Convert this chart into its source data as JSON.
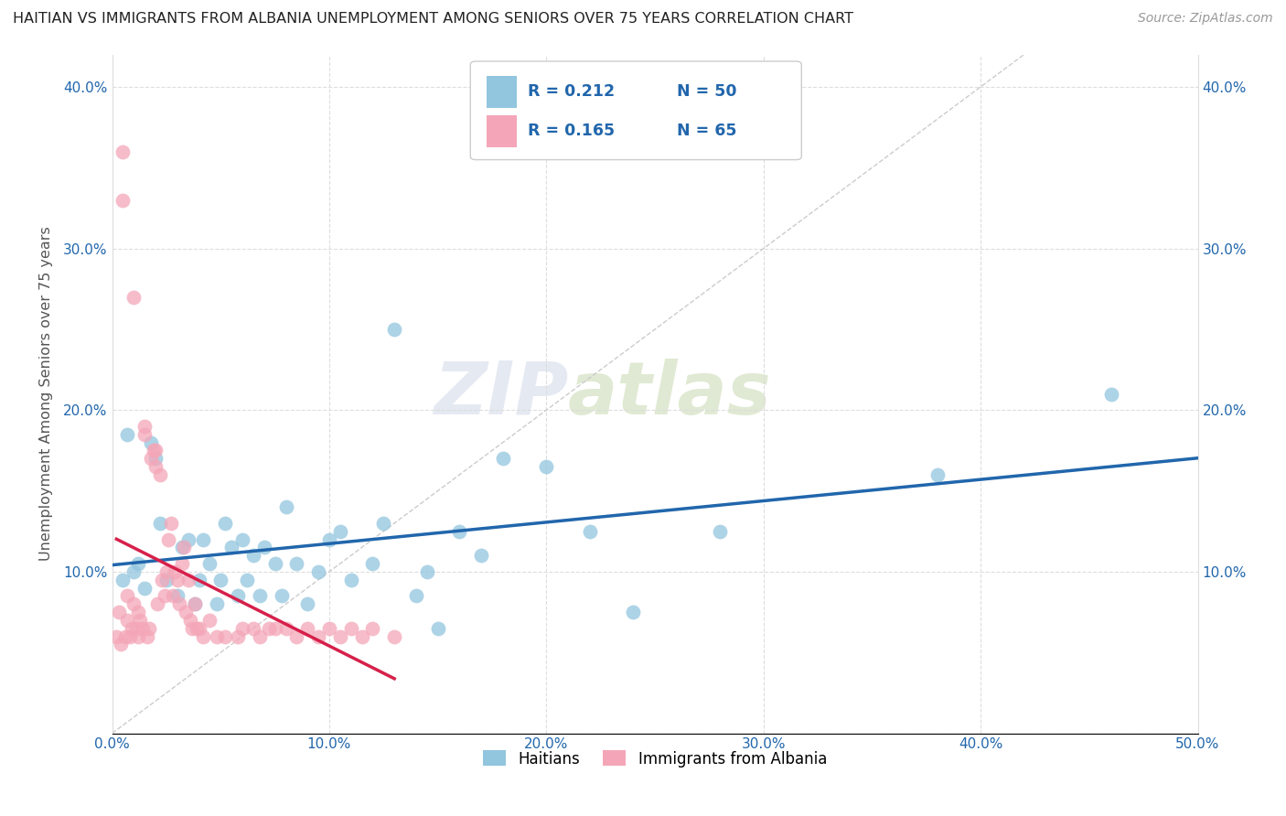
{
  "title": "HAITIAN VS IMMIGRANTS FROM ALBANIA UNEMPLOYMENT AMONG SENIORS OVER 75 YEARS CORRELATION CHART",
  "source": "Source: ZipAtlas.com",
  "ylabel": "Unemployment Among Seniors over 75 years",
  "xlim": [
    0.0,
    0.5
  ],
  "ylim": [
    0.0,
    0.42
  ],
  "xticks": [
    0.0,
    0.1,
    0.2,
    0.3,
    0.4,
    0.5
  ],
  "xticklabels": [
    "0.0%",
    "10.0%",
    "20.0%",
    "30.0%",
    "40.0%",
    "50.0%"
  ],
  "yticks": [
    0.0,
    0.1,
    0.2,
    0.3,
    0.4
  ],
  "yticklabels": [
    "",
    "10.0%",
    "20.0%",
    "30.0%",
    "40.0%"
  ],
  "legend1_label": "Haitians",
  "legend2_label": "Immigrants from Albania",
  "R1": "0.212",
  "N1": "50",
  "R2": "0.165",
  "N2": "65",
  "color_blue": "#92c5de",
  "color_pink": "#f4a6b8",
  "color_blue_line": "#2166ac",
  "color_pink_line": "#d6204a",
  "color_blue_text": "#2166ac",
  "color_pink_text": "#d6204a",
  "watermark_left": "ZIP",
  "watermark_right": "atlas",
  "blue_scatter_x": [
    0.005,
    0.007,
    0.01,
    0.012,
    0.015,
    0.018,
    0.02,
    0.022,
    0.025,
    0.03,
    0.032,
    0.035,
    0.038,
    0.04,
    0.042,
    0.045,
    0.048,
    0.05,
    0.052,
    0.055,
    0.058,
    0.06,
    0.062,
    0.065,
    0.068,
    0.07,
    0.075,
    0.078,
    0.08,
    0.085,
    0.09,
    0.095,
    0.1,
    0.105,
    0.11,
    0.12,
    0.125,
    0.13,
    0.14,
    0.145,
    0.15,
    0.16,
    0.17,
    0.18,
    0.2,
    0.22,
    0.24,
    0.28,
    0.38,
    0.46
  ],
  "blue_scatter_y": [
    0.095,
    0.185,
    0.1,
    0.105,
    0.09,
    0.18,
    0.17,
    0.13,
    0.095,
    0.085,
    0.115,
    0.12,
    0.08,
    0.095,
    0.12,
    0.105,
    0.08,
    0.095,
    0.13,
    0.115,
    0.085,
    0.12,
    0.095,
    0.11,
    0.085,
    0.115,
    0.105,
    0.085,
    0.14,
    0.105,
    0.08,
    0.1,
    0.12,
    0.125,
    0.095,
    0.105,
    0.13,
    0.25,
    0.085,
    0.1,
    0.065,
    0.125,
    0.11,
    0.17,
    0.165,
    0.125,
    0.075,
    0.125,
    0.16,
    0.21
  ],
  "pink_scatter_x": [
    0.002,
    0.003,
    0.004,
    0.005,
    0.005,
    0.006,
    0.007,
    0.007,
    0.008,
    0.009,
    0.01,
    0.01,
    0.011,
    0.012,
    0.012,
    0.013,
    0.014,
    0.015,
    0.015,
    0.016,
    0.017,
    0.018,
    0.019,
    0.02,
    0.02,
    0.021,
    0.022,
    0.023,
    0.024,
    0.025,
    0.026,
    0.027,
    0.028,
    0.029,
    0.03,
    0.031,
    0.032,
    0.033,
    0.034,
    0.035,
    0.036,
    0.037,
    0.038,
    0.039,
    0.04,
    0.042,
    0.045,
    0.048,
    0.052,
    0.058,
    0.06,
    0.065,
    0.068,
    0.072,
    0.075,
    0.08,
    0.085,
    0.09,
    0.095,
    0.1,
    0.105,
    0.11,
    0.115,
    0.12,
    0.13
  ],
  "pink_scatter_y": [
    0.06,
    0.075,
    0.055,
    0.33,
    0.36,
    0.06,
    0.07,
    0.085,
    0.06,
    0.065,
    0.27,
    0.08,
    0.065,
    0.06,
    0.075,
    0.07,
    0.065,
    0.185,
    0.19,
    0.06,
    0.065,
    0.17,
    0.175,
    0.165,
    0.175,
    0.08,
    0.16,
    0.095,
    0.085,
    0.1,
    0.12,
    0.13,
    0.085,
    0.1,
    0.095,
    0.08,
    0.105,
    0.115,
    0.075,
    0.095,
    0.07,
    0.065,
    0.08,
    0.065,
    0.065,
    0.06,
    0.07,
    0.06,
    0.06,
    0.06,
    0.065,
    0.065,
    0.06,
    0.065,
    0.065,
    0.065,
    0.06,
    0.065,
    0.06,
    0.065,
    0.06,
    0.065,
    0.06,
    0.065,
    0.06
  ]
}
